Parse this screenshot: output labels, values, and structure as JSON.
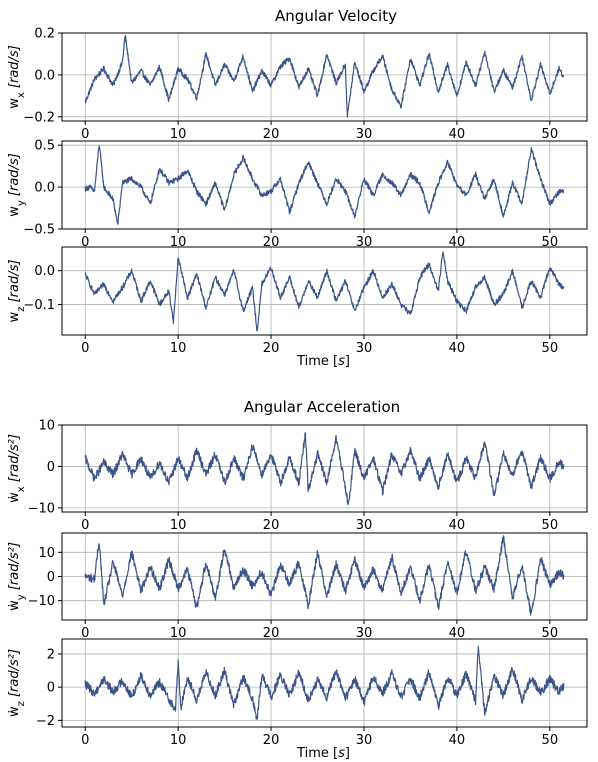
{
  "figure": {
    "titles": [
      "Angular Velocity",
      "Angular Acceleration"
    ],
    "xlabel": "Time [s]",
    "line_color": "#3a5488"
  },
  "chart_data": [
    {
      "type": "line",
      "group": 0,
      "ylabel": "w_x [rad/s]",
      "xlim": [
        -2.5,
        54
      ],
      "ylim": [
        -0.22,
        0.2
      ],
      "xticks": [
        0,
        10,
        20,
        30,
        40,
        50
      ],
      "xtick_labels": [
        "0",
        "10",
        "20",
        "30",
        "40",
        "50"
      ],
      "yticks": [
        -0.2,
        0.0,
        0.2
      ],
      "ytick_labels": [
        "−0.2",
        "0.0",
        "0.2"
      ],
      "grid": true,
      "show_xlabel": false,
      "series": [
        {
          "x": [
            0,
            1,
            2,
            3,
            4,
            4.3,
            5,
            6,
            7,
            8,
            9,
            10,
            11,
            12,
            13,
            14,
            15,
            16,
            17,
            18,
            19,
            20,
            21,
            22,
            23,
            24,
            25,
            26,
            27,
            28,
            28.2,
            29,
            30,
            31,
            32,
            33,
            34,
            35,
            36,
            37,
            38,
            39,
            40,
            41,
            42,
            43,
            44,
            45,
            46,
            47,
            48,
            49,
            50,
            51,
            51.5
          ],
          "y": [
            -0.13,
            -0.02,
            0.03,
            -0.05,
            0.06,
            0.19,
            -0.04,
            0.02,
            -0.05,
            0.04,
            -0.12,
            0.03,
            -0.02,
            -0.11,
            0.1,
            -0.05,
            0.05,
            -0.03,
            0.09,
            -0.08,
            0.02,
            -0.05,
            0.04,
            0.08,
            -0.06,
            0.03,
            -0.1,
            0.1,
            -0.04,
            0.05,
            -0.2,
            0.06,
            -0.08,
            0.02,
            0.09,
            -0.07,
            -0.15,
            0.08,
            -0.05,
            0.1,
            -0.08,
            0.05,
            -0.1,
            0.06,
            -0.05,
            0.11,
            -0.08,
            0.02,
            -0.06,
            0.09,
            -0.12,
            0.05,
            -0.09,
            0.03,
            -0.01
          ]
        }
      ]
    },
    {
      "type": "line",
      "group": 0,
      "ylabel": "w_y [rad/s]",
      "xlim": [
        -2.5,
        54
      ],
      "ylim": [
        -0.5,
        0.55
      ],
      "xticks": [
        0,
        10,
        20,
        30,
        40,
        50
      ],
      "xtick_labels": [
        "0",
        "10",
        "20",
        "30",
        "40",
        "50"
      ],
      "yticks": [
        -0.5,
        0.0,
        0.5
      ],
      "ytick_labels": [
        "−0.5",
        "0.0",
        "0.5"
      ],
      "grid": true,
      "show_xlabel": false,
      "series": [
        {
          "x": [
            0,
            0.5,
            1,
            1.5,
            2,
            3,
            3.5,
            4,
            5,
            6,
            7,
            8,
            9,
            10,
            11,
            12,
            13,
            14,
            15,
            16,
            17,
            18,
            19,
            20,
            21,
            22,
            23,
            24,
            25,
            26,
            27,
            28,
            29,
            30,
            31,
            32,
            33,
            34,
            35,
            36,
            37,
            38,
            39,
            40,
            41,
            42,
            43,
            44,
            45,
            46,
            47,
            48,
            49,
            50,
            51,
            51.5
          ],
          "y": [
            -0.02,
            0.0,
            -0.05,
            0.52,
            0.0,
            -0.15,
            -0.45,
            0.05,
            0.1,
            0.0,
            -0.2,
            0.22,
            0.05,
            0.1,
            0.2,
            -0.05,
            -0.2,
            0.05,
            -0.28,
            0.15,
            0.35,
            0.1,
            -0.1,
            -0.05,
            0.1,
            -0.3,
            0.05,
            0.3,
            0.05,
            -0.2,
            0.1,
            -0.05,
            -0.35,
            0.1,
            -0.1,
            0.15,
            0.05,
            -0.1,
            0.15,
            0.05,
            -0.3,
            0.05,
            0.3,
            0.02,
            -0.1,
            0.15,
            -0.15,
            0.1,
            -0.35,
            0.05,
            -0.2,
            0.45,
            0.1,
            -0.2,
            -0.05,
            -0.05
          ]
        }
      ]
    },
    {
      "type": "line",
      "group": 0,
      "ylabel": "w_z [rad/s]",
      "xlim": [
        -2.5,
        54
      ],
      "ylim": [
        -0.19,
        0.07
      ],
      "xticks": [
        0,
        10,
        20,
        30,
        40,
        50
      ],
      "xtick_labels": [
        "0",
        "10",
        "20",
        "30",
        "40",
        "50"
      ],
      "yticks": [
        -0.1,
        0.0
      ],
      "ytick_labels": [
        "−0.1",
        "0.0"
      ],
      "grid": true,
      "show_xlabel": true,
      "series": [
        {
          "x": [
            0,
            1,
            2,
            3,
            4,
            5,
            6,
            7,
            8,
            9,
            9.5,
            10,
            11,
            12,
            13,
            14,
            15,
            16,
            17,
            18,
            18.5,
            19,
            20,
            21,
            22,
            23,
            24,
            25,
            26,
            27,
            28,
            29,
            30,
            31,
            32,
            33,
            34,
            35,
            36,
            37,
            38,
            38.5,
            39,
            40,
            41,
            42,
            43,
            44,
            45,
            46,
            47,
            48,
            49,
            50,
            51,
            51.5
          ],
          "y": [
            -0.01,
            -0.07,
            -0.04,
            -0.09,
            -0.05,
            0.0,
            -0.09,
            -0.03,
            -0.1,
            -0.06,
            -0.15,
            0.04,
            -0.08,
            -0.01,
            -0.11,
            -0.02,
            -0.07,
            0.0,
            -0.12,
            -0.05,
            -0.18,
            -0.04,
            0.01,
            -0.08,
            -0.02,
            -0.11,
            -0.03,
            -0.08,
            0.0,
            -0.09,
            -0.03,
            -0.12,
            -0.05,
            0.0,
            -0.08,
            -0.04,
            -0.1,
            -0.13,
            -0.02,
            0.02,
            -0.06,
            0.06,
            -0.03,
            -0.09,
            -0.12,
            -0.05,
            -0.02,
            -0.1,
            -0.07,
            0.0,
            -0.11,
            -0.03,
            -0.08,
            0.01,
            -0.04,
            -0.05
          ]
        }
      ]
    },
    {
      "type": "line",
      "group": 1,
      "ylabel": "ẇ_x [rad/s²]",
      "xlim": [
        -2.5,
        54
      ],
      "ylim": [
        -11,
        10
      ],
      "xticks": [
        0,
        10,
        20,
        30,
        40,
        50
      ],
      "xtick_labels": [
        "0",
        "10",
        "20",
        "30",
        "40",
        "50"
      ],
      "yticks": [
        -10,
        0,
        10
      ],
      "ytick_labels": [
        "−10",
        "0",
        "10"
      ],
      "grid": true,
      "show_xlabel": false,
      "series": [
        {
          "x": [
            0,
            1,
            2,
            3,
            4,
            5,
            6,
            7,
            8,
            9,
            10,
            11,
            12,
            13,
            14,
            15,
            16,
            17,
            18,
            19,
            20,
            21,
            22,
            23,
            23.7,
            24,
            25,
            26,
            27,
            28,
            28.3,
            29,
            30,
            31,
            32,
            33,
            34,
            35,
            36,
            37,
            38,
            39,
            40,
            41,
            42,
            43,
            44,
            45,
            46,
            47,
            48,
            49,
            50,
            51,
            51.5
          ],
          "y": [
            2,
            -3,
            1,
            -2,
            3,
            -2,
            2,
            -3,
            1,
            -4,
            2,
            -3,
            4,
            -2,
            3,
            -4,
            2,
            -3,
            5,
            -2,
            3,
            -4,
            2,
            -4,
            8,
            -6,
            3,
            -4,
            7,
            -5,
            -10,
            4,
            -3,
            2,
            -6,
            3,
            -2,
            4,
            -3,
            2,
            -5,
            3,
            -4,
            2,
            -3,
            6,
            -7,
            3,
            -2,
            4,
            -5,
            2,
            -3,
            1,
            0
          ]
        }
      ]
    },
    {
      "type": "line",
      "group": 1,
      "ylabel": "ẇ_y [rad/s²]",
      "xlim": [
        -2.5,
        54
      ],
      "ylim": [
        -18,
        18
      ],
      "xticks": [
        0,
        10,
        20,
        30,
        40,
        50
      ],
      "xtick_labels": [
        "0",
        "10",
        "20",
        "30",
        "40",
        "50"
      ],
      "yticks": [
        -10,
        0,
        10
      ],
      "ytick_labels": [
        "−10",
        "0",
        "10"
      ],
      "grid": true,
      "show_xlabel": false,
      "series": [
        {
          "x": [
            0,
            1,
            1.5,
            2,
            3,
            4,
            5,
            6,
            7,
            8,
            9,
            10,
            11,
            12,
            13,
            14,
            15,
            16,
            17,
            18,
            19,
            20,
            21,
            22,
            23,
            24,
            25,
            26,
            27,
            28,
            29,
            30,
            31,
            32,
            33,
            34,
            35,
            36,
            37,
            38,
            39,
            40,
            41,
            42,
            43,
            44,
            45,
            46,
            47,
            48,
            49,
            50,
            51,
            51.5
          ],
          "y": [
            0,
            -1,
            15,
            -12,
            6,
            -8,
            10,
            -6,
            4,
            -5,
            7,
            -5,
            3,
            -13,
            6,
            -9,
            12,
            -5,
            3,
            -4,
            2,
            -8,
            5,
            -3,
            6,
            -12,
            10,
            -8,
            5,
            -6,
            7,
            -5,
            3,
            -6,
            8,
            -7,
            4,
            -10,
            5,
            -13,
            6,
            -7,
            11,
            -6,
            4,
            -5,
            16,
            -9,
            5,
            -16,
            8,
            -4,
            2,
            0
          ]
        }
      ]
    },
    {
      "type": "line",
      "group": 1,
      "ylabel": "ẇ_z [rad/s²]",
      "xlim": [
        -2.5,
        54
      ],
      "ylim": [
        -2.4,
        2.9
      ],
      "xticks": [
        0,
        10,
        20,
        30,
        40,
        50
      ],
      "xtick_labels": [
        "0",
        "10",
        "20",
        "30",
        "40",
        "50"
      ],
      "yticks": [
        -2,
        0,
        2
      ],
      "ytick_labels": [
        "−2",
        "0",
        "2"
      ],
      "grid": true,
      "show_xlabel": true,
      "series": [
        {
          "x": [
            0,
            1,
            2,
            3,
            4,
            5,
            6,
            7,
            8,
            9,
            9.7,
            10,
            10.3,
            11,
            12,
            13,
            14,
            15,
            16,
            17,
            18,
            18.5,
            19,
            20,
            21,
            22,
            23,
            24,
            25,
            26,
            27,
            28,
            29,
            30,
            31,
            32,
            33,
            34,
            35,
            36,
            37,
            38,
            39,
            40,
            41,
            42,
            42.3,
            43,
            44,
            45,
            46,
            47,
            48,
            49,
            50,
            51,
            51.5
          ],
          "y": [
            0.2,
            -0.4,
            0.5,
            -0.3,
            0.4,
            -0.6,
            0.7,
            -0.5,
            0.3,
            -0.7,
            -1.4,
            1.5,
            -1.3,
            0.6,
            -0.8,
            0.9,
            -0.5,
            1.0,
            -1.1,
            0.6,
            -0.7,
            -2.0,
            0.8,
            -0.6,
            0.7,
            -0.5,
            0.9,
            -0.8,
            0.4,
            -0.6,
            1.0,
            -0.7,
            0.5,
            -0.9,
            0.6,
            -0.4,
            0.8,
            -0.6,
            0.5,
            -0.7,
            0.9,
            -1.2,
            0.6,
            -0.5,
            0.8,
            -0.9,
            2.5,
            -1.6,
            0.7,
            -0.5,
            1.1,
            -0.8,
            0.6,
            -0.4,
            0.5,
            -0.3,
            0.1
          ]
        }
      ]
    }
  ]
}
